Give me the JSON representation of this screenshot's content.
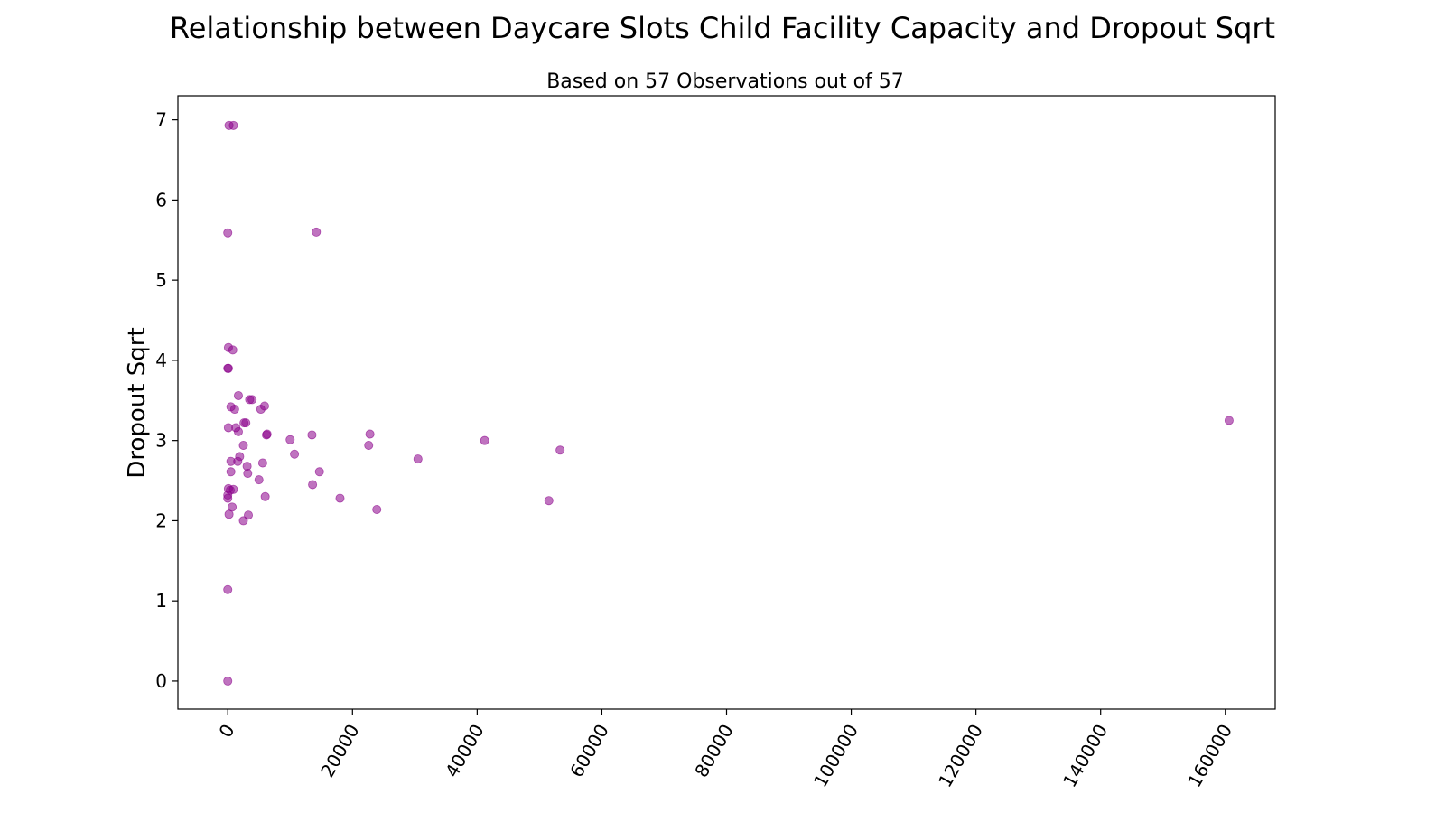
{
  "chart_data": {
    "type": "scatter",
    "title": "Relationship between Daycare Slots Child Facility Capacity and Dropout Sqrt",
    "subtitle": "Based on 57 Observations out of 57",
    "xlabel": "",
    "ylabel": "Dropout Sqrt",
    "xlim": [
      -8000,
      168000
    ],
    "ylim": [
      -0.35,
      7.3
    ],
    "x_ticks": [
      0,
      20000,
      40000,
      60000,
      80000,
      100000,
      120000,
      140000,
      160000
    ],
    "y_ticks": [
      0,
      1,
      2,
      3,
      4,
      5,
      6,
      7
    ],
    "grid": false,
    "marker_color": "#8b008b",
    "marker_alpha": 0.55,
    "points": [
      {
        "x": 200,
        "y": 6.93
      },
      {
        "x": 900,
        "y": 6.93
      },
      {
        "x": 0,
        "y": 5.59
      },
      {
        "x": 14200,
        "y": 5.6
      },
      {
        "x": 100,
        "y": 4.16
      },
      {
        "x": 800,
        "y": 4.13
      },
      {
        "x": 0,
        "y": 3.9
      },
      {
        "x": 100,
        "y": 3.9
      },
      {
        "x": 1700,
        "y": 3.56
      },
      {
        "x": 3500,
        "y": 3.51
      },
      {
        "x": 3900,
        "y": 3.51
      },
      {
        "x": 500,
        "y": 3.42
      },
      {
        "x": 1100,
        "y": 3.39
      },
      {
        "x": 5300,
        "y": 3.39
      },
      {
        "x": 5900,
        "y": 3.43
      },
      {
        "x": 2600,
        "y": 3.22
      },
      {
        "x": 2900,
        "y": 3.22
      },
      {
        "x": 100,
        "y": 3.16
      },
      {
        "x": 1300,
        "y": 3.16
      },
      {
        "x": 1700,
        "y": 3.11
      },
      {
        "x": 6200,
        "y": 3.07
      },
      {
        "x": 6300,
        "y": 3.08
      },
      {
        "x": 13500,
        "y": 3.07
      },
      {
        "x": 22800,
        "y": 3.08
      },
      {
        "x": 10000,
        "y": 3.01
      },
      {
        "x": 41200,
        "y": 3.0
      },
      {
        "x": 2500,
        "y": 2.94
      },
      {
        "x": 22600,
        "y": 2.94
      },
      {
        "x": 53300,
        "y": 2.88
      },
      {
        "x": 10700,
        "y": 2.83
      },
      {
        "x": 1900,
        "y": 2.8
      },
      {
        "x": 30500,
        "y": 2.77
      },
      {
        "x": 500,
        "y": 2.74
      },
      {
        "x": 1600,
        "y": 2.74
      },
      {
        "x": 5600,
        "y": 2.72
      },
      {
        "x": 3100,
        "y": 2.68
      },
      {
        "x": 500,
        "y": 2.61
      },
      {
        "x": 3200,
        "y": 2.59
      },
      {
        "x": 14700,
        "y": 2.61
      },
      {
        "x": 5000,
        "y": 2.51
      },
      {
        "x": 13600,
        "y": 2.45
      },
      {
        "x": 100,
        "y": 2.4
      },
      {
        "x": 400,
        "y": 2.38
      },
      {
        "x": 900,
        "y": 2.39
      },
      {
        "x": 0,
        "y": 2.32
      },
      {
        "x": 0,
        "y": 2.28
      },
      {
        "x": 6000,
        "y": 2.3
      },
      {
        "x": 18000,
        "y": 2.28
      },
      {
        "x": 51500,
        "y": 2.25
      },
      {
        "x": 700,
        "y": 2.17
      },
      {
        "x": 23900,
        "y": 2.14
      },
      {
        "x": 200,
        "y": 2.08
      },
      {
        "x": 3300,
        "y": 2.07
      },
      {
        "x": 2500,
        "y": 2.0
      },
      {
        "x": 0,
        "y": 1.14
      },
      {
        "x": 0,
        "y": 0.0
      },
      {
        "x": 160600,
        "y": 3.25
      }
    ]
  }
}
